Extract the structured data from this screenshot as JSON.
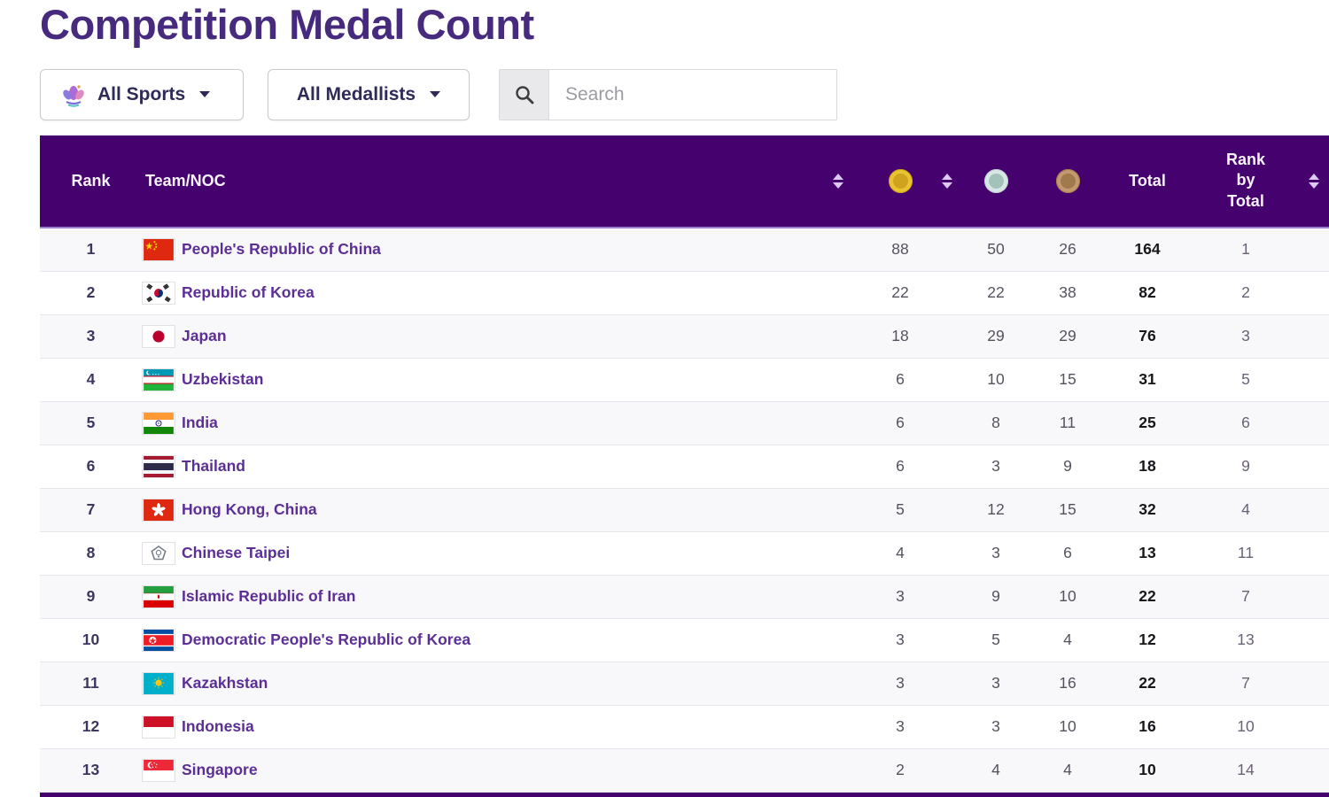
{
  "page": {
    "title": "Competition Medal Count"
  },
  "filters": {
    "sports_label": "All Sports",
    "medallists_label": "All Medallists",
    "search_placeholder": "Search"
  },
  "table": {
    "headers": {
      "rank": "Rank",
      "team": "Team/NOC",
      "total": "Total",
      "rank_by_total": "Rank by Total"
    },
    "medal_columns": [
      "gold",
      "silver",
      "bronze"
    ],
    "rows": [
      {
        "rank": 1,
        "flag": "cn",
        "team": "People's Republic of China",
        "gold": 88,
        "silver": 50,
        "bronze": 26,
        "total": 164,
        "rank_by_total": 1
      },
      {
        "rank": 2,
        "flag": "kr",
        "team": "Republic of Korea",
        "gold": 22,
        "silver": 22,
        "bronze": 38,
        "total": 82,
        "rank_by_total": 2
      },
      {
        "rank": 3,
        "flag": "jp",
        "team": "Japan",
        "gold": 18,
        "silver": 29,
        "bronze": 29,
        "total": 76,
        "rank_by_total": 3
      },
      {
        "rank": 4,
        "flag": "uz",
        "team": "Uzbekistan",
        "gold": 6,
        "silver": 10,
        "bronze": 15,
        "total": 31,
        "rank_by_total": 5
      },
      {
        "rank": 5,
        "flag": "in",
        "team": "India",
        "gold": 6,
        "silver": 8,
        "bronze": 11,
        "total": 25,
        "rank_by_total": 6
      },
      {
        "rank": 6,
        "flag": "th",
        "team": "Thailand",
        "gold": 6,
        "silver": 3,
        "bronze": 9,
        "total": 18,
        "rank_by_total": 9
      },
      {
        "rank": 7,
        "flag": "hk",
        "team": "Hong Kong, China",
        "gold": 5,
        "silver": 12,
        "bronze": 15,
        "total": 32,
        "rank_by_total": 4
      },
      {
        "rank": 8,
        "flag": "tpe",
        "team": "Chinese Taipei",
        "gold": 4,
        "silver": 3,
        "bronze": 6,
        "total": 13,
        "rank_by_total": 11
      },
      {
        "rank": 9,
        "flag": "ir",
        "team": "Islamic Republic of Iran",
        "gold": 3,
        "silver": 9,
        "bronze": 10,
        "total": 22,
        "rank_by_total": 7
      },
      {
        "rank": 10,
        "flag": "kp",
        "team": "Democratic People's Republic of Korea",
        "gold": 3,
        "silver": 5,
        "bronze": 4,
        "total": 12,
        "rank_by_total": 13
      },
      {
        "rank": 11,
        "flag": "kz",
        "team": "Kazakhstan",
        "gold": 3,
        "silver": 3,
        "bronze": 16,
        "total": 22,
        "rank_by_total": 7
      },
      {
        "rank": 12,
        "flag": "id",
        "team": "Indonesia",
        "gold": 3,
        "silver": 3,
        "bronze": 10,
        "total": 16,
        "rank_by_total": 10
      },
      {
        "rank": 13,
        "flag": "sg",
        "team": "Singapore",
        "gold": 2,
        "silver": 4,
        "bronze": 4,
        "total": 10,
        "rank_by_total": 14
      }
    ]
  },
  "colors": {
    "header_bg": "#45016e",
    "title": "#452a7d",
    "team_name": "#5b2f95",
    "gold": "#e9c430",
    "silver": "#d9e6e6",
    "bronze": "#c39a6f"
  }
}
